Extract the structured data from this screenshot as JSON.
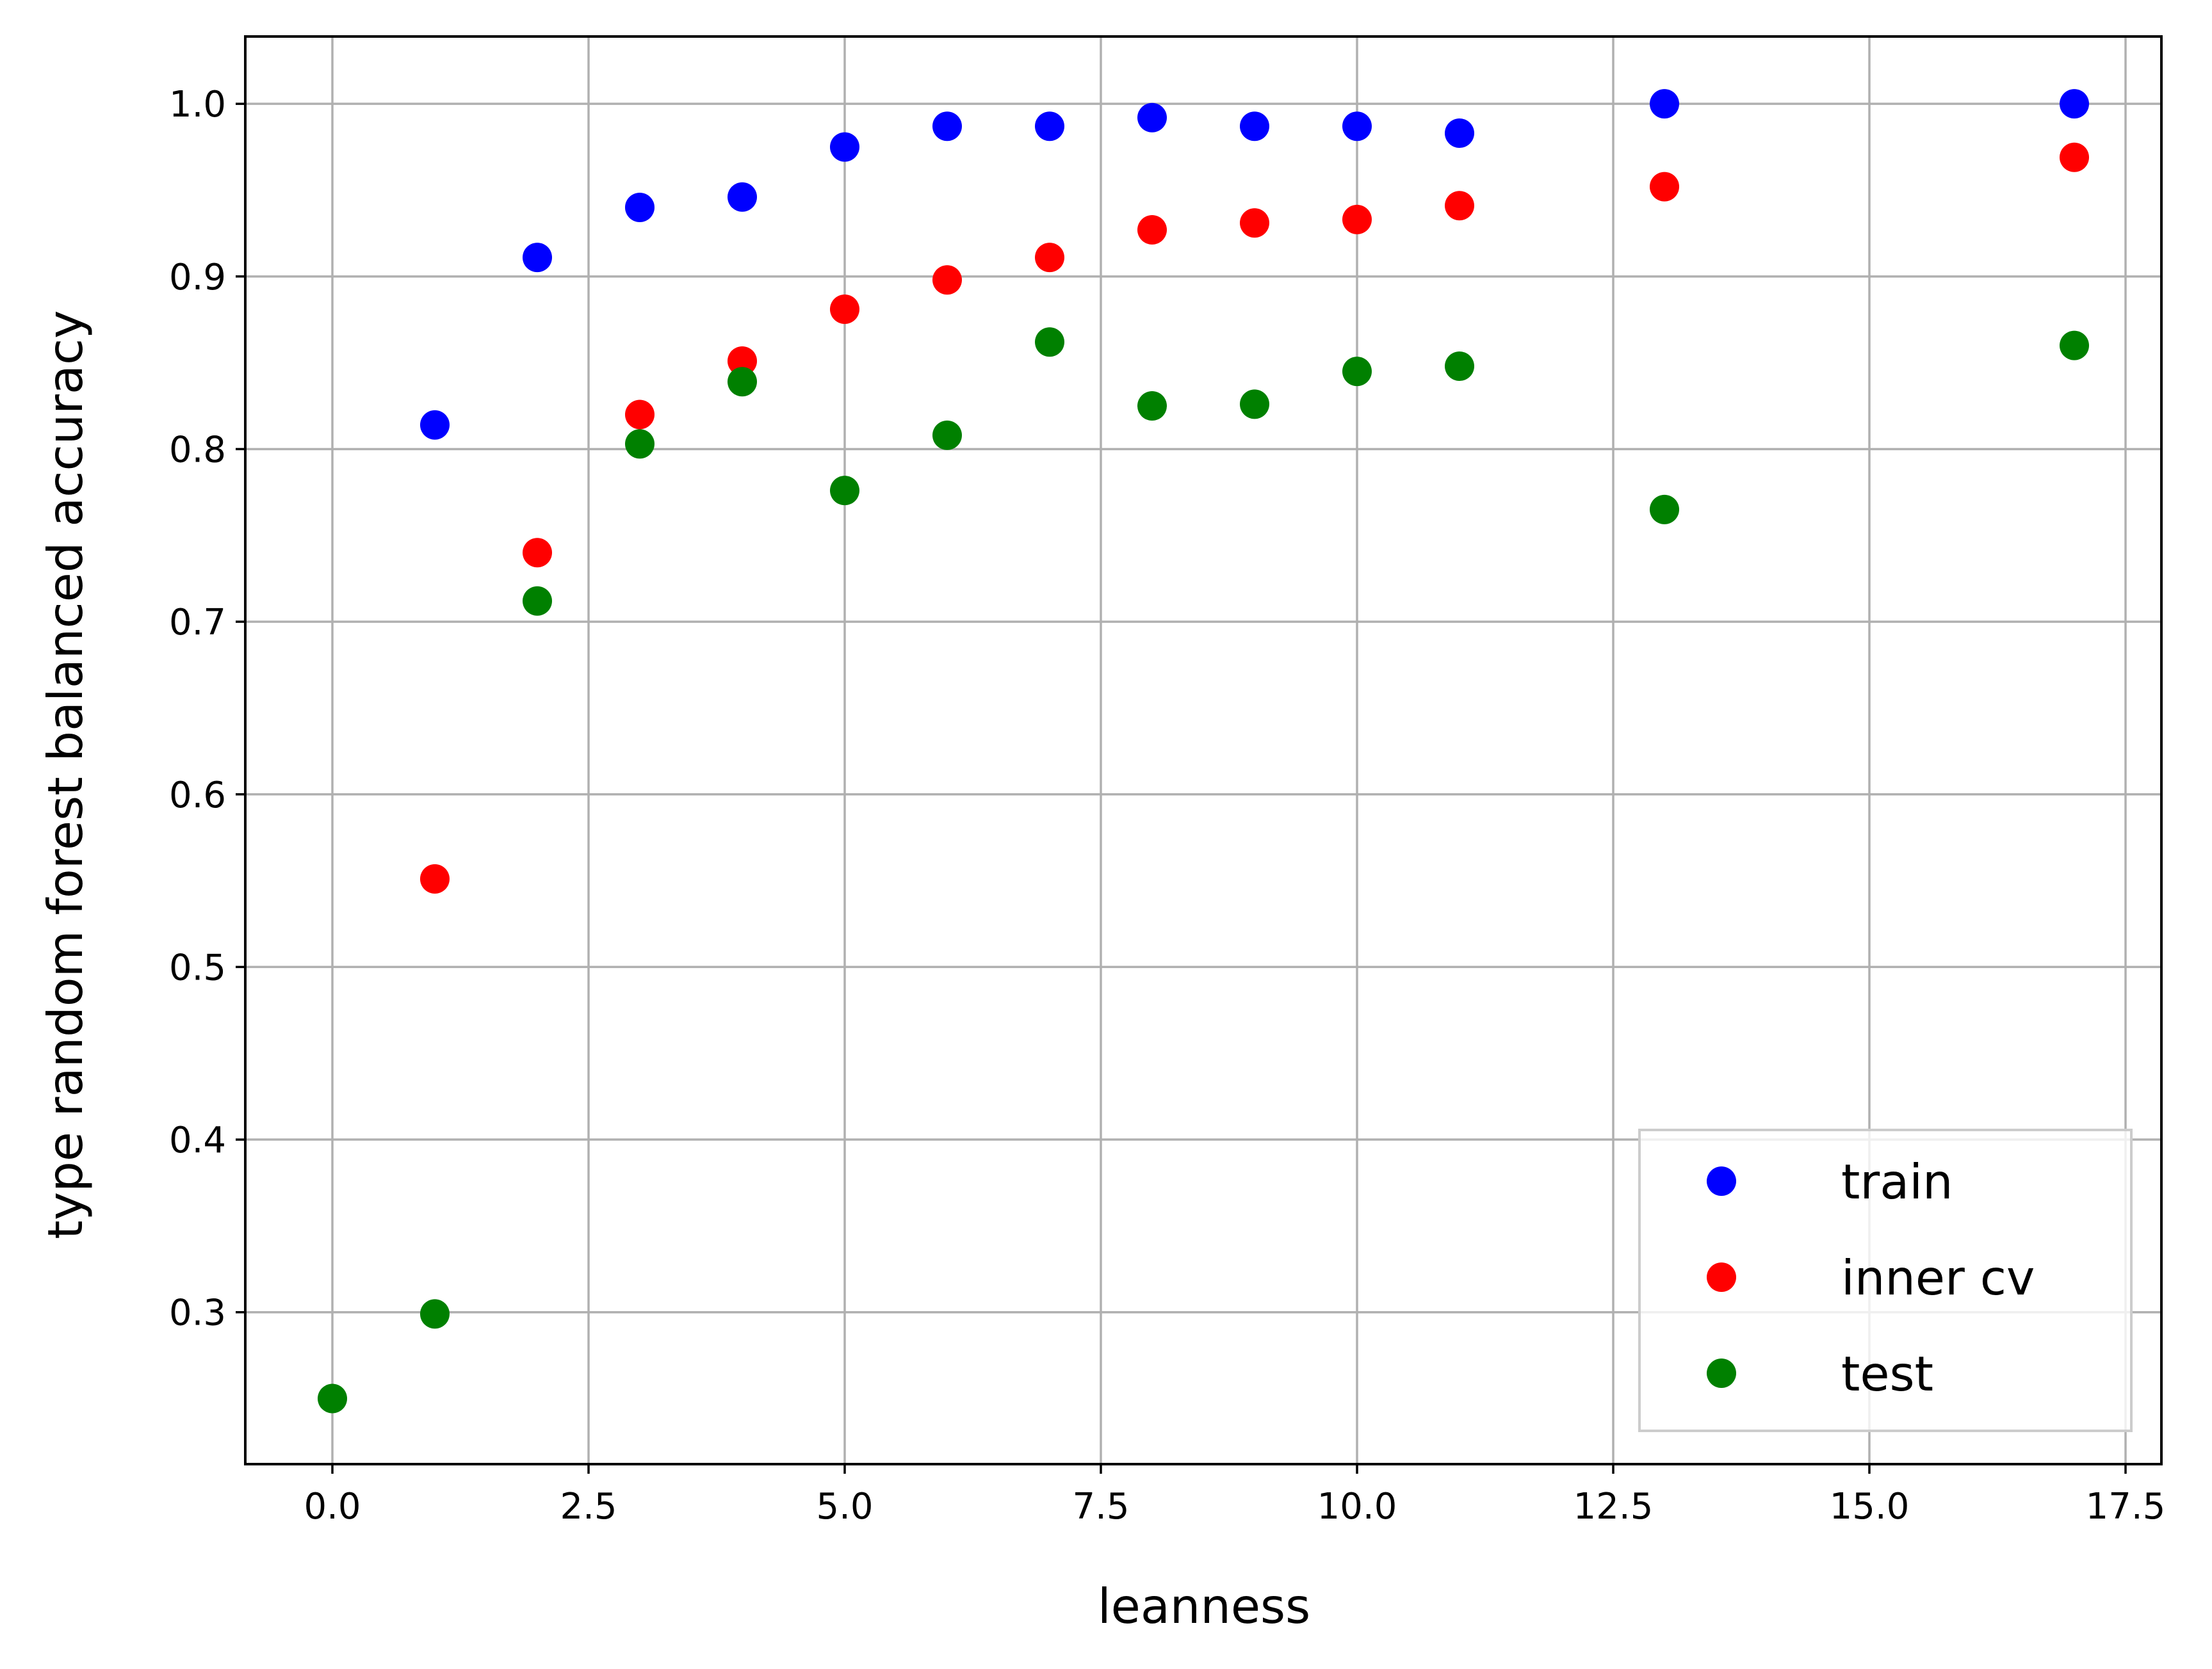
{
  "chart_data": {
    "type": "scatter",
    "title": "",
    "xlabel": "leanness",
    "ylabel": "type random forest balanced accuracy",
    "xlim": [
      -0.85,
      17.85
    ],
    "ylim": [
      0.212,
      1.039
    ],
    "xticks": [
      "0.0",
      "2.5",
      "5.0",
      "7.5",
      "10.0",
      "12.5",
      "15.0",
      "17.5"
    ],
    "yticks": [
      "0.3",
      "0.4",
      "0.5",
      "0.6",
      "0.7",
      "0.8",
      "0.9",
      "1.0"
    ],
    "grid": true,
    "legend_position": "lower-right",
    "series": [
      {
        "name": "train",
        "color": "#0000ff",
        "points": [
          [
            1,
            0.814
          ],
          [
            2,
            0.911
          ],
          [
            3,
            0.94
          ],
          [
            4,
            0.946
          ],
          [
            5,
            0.975
          ],
          [
            6,
            0.987
          ],
          [
            7,
            0.987
          ],
          [
            8,
            0.992
          ],
          [
            9,
            0.987
          ],
          [
            10,
            0.987
          ],
          [
            11,
            0.983
          ],
          [
            13,
            1.0
          ],
          [
            17,
            1.0
          ]
        ]
      },
      {
        "name": "inner cv",
        "color": "#ff0000",
        "points": [
          [
            1,
            0.551
          ],
          [
            2,
            0.74
          ],
          [
            3,
            0.82
          ],
          [
            4,
            0.851
          ],
          [
            5,
            0.881
          ],
          [
            6,
            0.898
          ],
          [
            7,
            0.911
          ],
          [
            8,
            0.927
          ],
          [
            9,
            0.931
          ],
          [
            10,
            0.933
          ],
          [
            11,
            0.941
          ],
          [
            13,
            0.952
          ],
          [
            17,
            0.969
          ]
        ]
      },
      {
        "name": "test",
        "color": "#008000",
        "points": [
          [
            0,
            0.25
          ],
          [
            1,
            0.299
          ],
          [
            2,
            0.712
          ],
          [
            3,
            0.803
          ],
          [
            4,
            0.839
          ],
          [
            5,
            0.776
          ],
          [
            6,
            0.808
          ],
          [
            7,
            0.862
          ],
          [
            8,
            0.825
          ],
          [
            9,
            0.826
          ],
          [
            10,
            0.845
          ],
          [
            11,
            0.848
          ],
          [
            13,
            0.765
          ],
          [
            17,
            0.86
          ]
        ]
      }
    ]
  }
}
